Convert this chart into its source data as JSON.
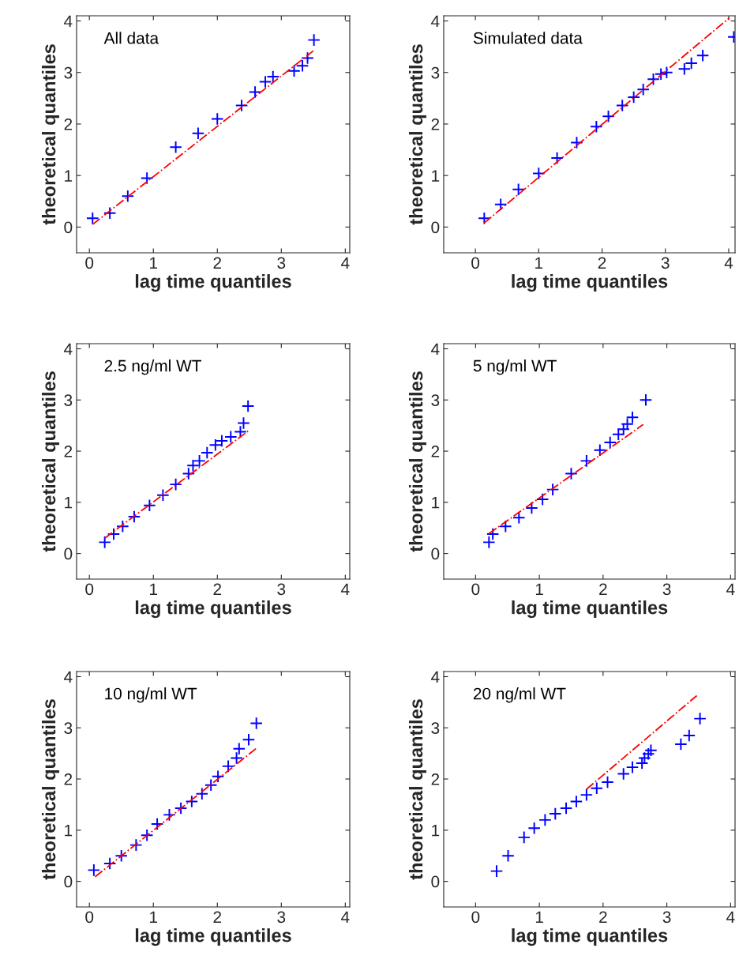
{
  "chart_data": [
    {
      "type": "scatter",
      "annotations": [
        "All data"
      ],
      "xlabel": "lag time quantiles",
      "ylabel": "theoretical quantiles",
      "xlim": [
        -0.2,
        4.07
      ],
      "ylim": [
        -0.5,
        4.1
      ],
      "xticks": [
        0,
        1,
        2,
        3,
        4
      ],
      "yticks": [
        0,
        1,
        2,
        3,
        4
      ],
      "series": [
        {
          "type": "scatter",
          "marker": "cross",
          "color": "#0000ff",
          "x": [
            0.05,
            0.32,
            0.6,
            0.9,
            1.35,
            1.7,
            2.0,
            2.38,
            2.59,
            2.75,
            2.87,
            3.2,
            3.33,
            3.41,
            3.51
          ],
          "values": [
            0.17,
            0.27,
            0.6,
            0.95,
            1.55,
            1.82,
            2.1,
            2.36,
            2.62,
            2.82,
            2.92,
            3.03,
            3.13,
            3.28,
            3.63
          ]
        },
        {
          "type": "line",
          "marker": "none",
          "color": "#ff0000",
          "line_style": "dashdot",
          "x": [
            0.05,
            3.5
          ],
          "values": [
            0.05,
            3.42
          ]
        }
      ]
    },
    {
      "type": "scatter",
      "annotations": [
        "Simulated data"
      ],
      "xlabel": "lag time quantiles",
      "ylabel": "theoretical quantiles",
      "xlim": [
        -0.5,
        4.1
      ],
      "ylim": [
        -0.5,
        4.1
      ],
      "xticks": [
        0,
        1,
        2,
        3,
        4
      ],
      "yticks": [
        0,
        1,
        2,
        3,
        4
      ],
      "series": [
        {
          "type": "scatter",
          "marker": "cross",
          "color": "#0000ff",
          "x": [
            0.14,
            0.4,
            0.68,
            1.0,
            1.29,
            1.6,
            1.91,
            2.1,
            2.32,
            2.5,
            2.65,
            2.81,
            2.93,
            3.02,
            3.3,
            3.41,
            3.59,
            4.08
          ],
          "values": [
            0.17,
            0.44,
            0.73,
            1.04,
            1.34,
            1.64,
            1.95,
            2.15,
            2.36,
            2.52,
            2.67,
            2.87,
            2.97,
            3.0,
            3.07,
            3.18,
            3.33,
            3.69
          ]
        },
        {
          "type": "line",
          "marker": "none",
          "color": "#ff0000",
          "line_style": "dashdot",
          "x": [
            0.14,
            4.01
          ],
          "values": [
            0.08,
            4.06
          ]
        }
      ]
    },
    {
      "type": "scatter",
      "annotations": [
        "2.5 ng/ml WT"
      ],
      "xlabel": "lag time quantiles",
      "ylabel": "theoretical quantiles",
      "xlim": [
        -0.2,
        4.07
      ],
      "ylim": [
        -0.5,
        4.1
      ],
      "xticks": [
        0,
        1,
        2,
        3,
        4
      ],
      "yticks": [
        0,
        1,
        2,
        3,
        4
      ],
      "series": [
        {
          "type": "scatter",
          "marker": "cross",
          "color": "#0000ff",
          "x": [
            0.24,
            0.38,
            0.52,
            0.7,
            0.94,
            1.15,
            1.35,
            1.55,
            1.62,
            1.72,
            1.84,
            1.97,
            2.07,
            2.21,
            2.36,
            2.41,
            2.48
          ],
          "values": [
            0.22,
            0.38,
            0.53,
            0.72,
            0.94,
            1.14,
            1.35,
            1.56,
            1.72,
            1.81,
            1.97,
            2.12,
            2.2,
            2.28,
            2.38,
            2.55,
            2.88
          ]
        },
        {
          "type": "line",
          "marker": "none",
          "color": "#ff0000",
          "line_style": "dashdot",
          "x": [
            0.24,
            2.48
          ],
          "values": [
            0.3,
            2.39
          ]
        }
      ]
    },
    {
      "type": "scatter",
      "annotations": [
        "5 ng/ml WT"
      ],
      "xlabel": "lag time quantiles",
      "ylabel": "theoretical quantiles",
      "xlim": [
        -0.5,
        4.07
      ],
      "ylim": [
        -0.5,
        4.1
      ],
      "xticks": [
        0,
        1,
        2,
        3,
        4
      ],
      "yticks": [
        0,
        1,
        2,
        3,
        4
      ],
      "series": [
        {
          "type": "scatter",
          "marker": "cross",
          "color": "#0000ff",
          "x": [
            0.21,
            0.27,
            0.47,
            0.68,
            0.88,
            1.05,
            1.21,
            1.5,
            1.74,
            1.95,
            2.11,
            2.24,
            2.32,
            2.38,
            2.46,
            2.67
          ],
          "values": [
            0.22,
            0.38,
            0.53,
            0.7,
            0.89,
            1.06,
            1.25,
            1.56,
            1.81,
            2.02,
            2.17,
            2.33,
            2.43,
            2.53,
            2.66,
            3.0
          ]
        },
        {
          "type": "line",
          "marker": "none",
          "color": "#ff0000",
          "line_style": "dashdot",
          "x": [
            0.21,
            2.63
          ],
          "values": [
            0.39,
            2.52
          ]
        }
      ]
    },
    {
      "type": "scatter",
      "annotations": [
        "10 ng/ml WT"
      ],
      "xlabel": "lag time quantiles",
      "ylabel": "theoretical quantiles",
      "xlim": [
        -0.2,
        4.07
      ],
      "ylim": [
        -0.5,
        4.1
      ],
      "xticks": [
        0,
        1,
        2,
        3,
        4
      ],
      "yticks": [
        0,
        1,
        2,
        3,
        4
      ],
      "series": [
        {
          "type": "scatter",
          "marker": "cross",
          "color": "#0000ff",
          "x": [
            0.07,
            0.32,
            0.5,
            0.73,
            0.9,
            1.06,
            1.25,
            1.43,
            1.6,
            1.76,
            1.9,
            2.01,
            2.17,
            2.3,
            2.34,
            2.49,
            2.61
          ],
          "values": [
            0.22,
            0.35,
            0.5,
            0.71,
            0.9,
            1.12,
            1.3,
            1.43,
            1.56,
            1.71,
            1.88,
            2.05,
            2.25,
            2.41,
            2.59,
            2.77,
            3.09
          ]
        },
        {
          "type": "line",
          "marker": "none",
          "color": "#ff0000",
          "line_style": "dashdot",
          "x": [
            0.09,
            2.61
          ],
          "values": [
            0.09,
            2.6
          ]
        }
      ]
    },
    {
      "type": "scatter",
      "annotations": [
        "20 ng/ml WT"
      ],
      "xlabel": "lag time quantiles",
      "ylabel": "theoretical quantiles",
      "xlim": [
        -0.5,
        4.07
      ],
      "ylim": [
        -0.5,
        4.1
      ],
      "xticks": [
        0,
        1,
        2,
        3,
        4
      ],
      "yticks": [
        0,
        1,
        2,
        3,
        4
      ],
      "series": [
        {
          "type": "scatter",
          "marker": "cross",
          "color": "#0000ff",
          "x": [
            0.33,
            0.51,
            0.76,
            0.92,
            1.09,
            1.25,
            1.42,
            1.58,
            1.74,
            1.9,
            2.07,
            2.32,
            2.46,
            2.61,
            2.65,
            2.71,
            2.75,
            3.22,
            3.35,
            3.52
          ],
          "values": [
            0.2,
            0.5,
            0.86,
            1.04,
            1.2,
            1.32,
            1.43,
            1.56,
            1.69,
            1.82,
            1.94,
            2.1,
            2.23,
            2.31,
            2.41,
            2.49,
            2.56,
            2.68,
            2.85,
            3.18
          ]
        },
        {
          "type": "line",
          "marker": "none",
          "color": "#ff0000",
          "line_style": "dashdot",
          "x": [
            1.74,
            3.47
          ],
          "values": [
            1.8,
            3.63
          ]
        }
      ]
    }
  ]
}
